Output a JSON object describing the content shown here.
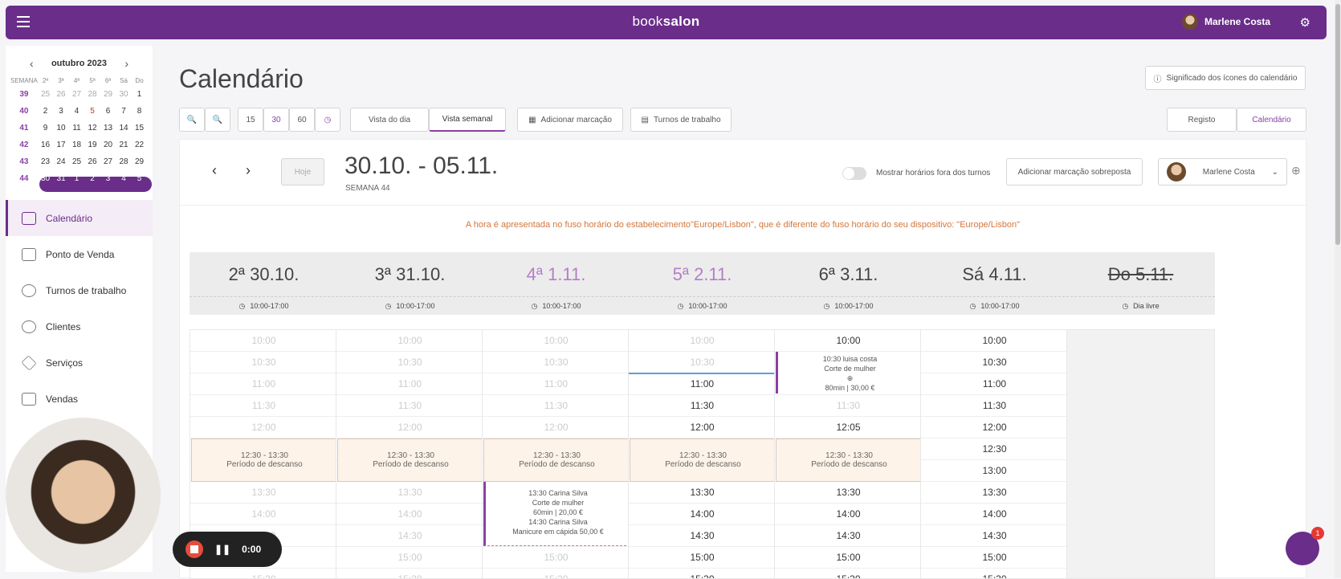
{
  "topbar": {
    "brand_a": "book",
    "brand_b": "salon",
    "user": "Marlene Costa"
  },
  "minical": {
    "month": "outubro 2023",
    "week_hdr": "SEMANA",
    "days": [
      "2ª",
      "3ª",
      "4ª",
      "5ª",
      "6ª",
      "Sá",
      "Do"
    ],
    "weeks": [
      {
        "wk": "39",
        "d": [
          "25",
          "26",
          "27",
          "28",
          "29",
          "30",
          "1"
        ]
      },
      {
        "wk": "40",
        "d": [
          "2",
          "3",
          "4",
          "5",
          "6",
          "7",
          "8"
        ]
      },
      {
        "wk": "41",
        "d": [
          "9",
          "10",
          "11",
          "12",
          "13",
          "14",
          "15"
        ]
      },
      {
        "wk": "42",
        "d": [
          "16",
          "17",
          "18",
          "19",
          "20",
          "21",
          "22"
        ]
      },
      {
        "wk": "43",
        "d": [
          "23",
          "24",
          "25",
          "26",
          "27",
          "28",
          "29"
        ]
      },
      {
        "wk": "44",
        "d": [
          "30",
          "31",
          "1",
          "2",
          "3",
          "4",
          "5"
        ]
      }
    ]
  },
  "nav": [
    "Calendário",
    "Ponto de Venda",
    "Turnos de trabalho",
    "Clientes",
    "Serviços",
    "Vendas"
  ],
  "title": "Calendário",
  "legend_btn": "Significado dos ícones do calendário",
  "toolbar": {
    "intervals": [
      "15",
      "30",
      "60"
    ],
    "view_day": "Vista do dia",
    "view_week": "Vista semanal",
    "add": "Adicionar marcação",
    "shifts": "Turnos de trabalho",
    "registo": "Registo",
    "calendario": "Calendário"
  },
  "week": {
    "today": "Hoje",
    "range": "30.10. - 05.11.",
    "label": "SEMANA 44",
    "toggle": "Mostrar horários fora dos turnos",
    "overlap": "Adicionar marcação sobreposta",
    "staff": "Marlene Costa"
  },
  "tz_notice": "A hora é apresentada no fuso horário do estabelecimento\"Europe/Lisbon\", que é diferente do fuso horário do seu dispositivo: \"Europe/Lisbon\"",
  "days": [
    {
      "label": "2ª 30.10.",
      "hours": "10:00-17:00"
    },
    {
      "label": "3ª 31.10.",
      "hours": "10:00-17:00"
    },
    {
      "label": "4ª 1.11.",
      "hours": "10:00-17:00"
    },
    {
      "label": "5ª 2.11.",
      "hours": "10:00-17:00"
    },
    {
      "label": "6ª 3.11.",
      "hours": "10:00-17:00"
    },
    {
      "label": "Sá 4.11.",
      "hours": "10:00-17:00"
    },
    {
      "label": "Do 5.11.",
      "hours": "Dia livre"
    }
  ],
  "break": {
    "time": "12:30 - 13:30",
    "label": "Período de descanso"
  },
  "appts": {
    "a1": {
      "line1": "10:30 luisa costa",
      "line2": "Corte de mulher",
      "line3": "80min | 30,00 €"
    },
    "a2": {
      "line1": "13:30 Carina Silva",
      "line2": "Corte de mulher",
      "line3": "60min | 20,00 €"
    },
    "a3": {
      "line1": "14:30 Carina Silva",
      "line2": "Manicure em cápida 50,00 €"
    }
  },
  "rec_time": "0:00",
  "chat_badge": "1"
}
